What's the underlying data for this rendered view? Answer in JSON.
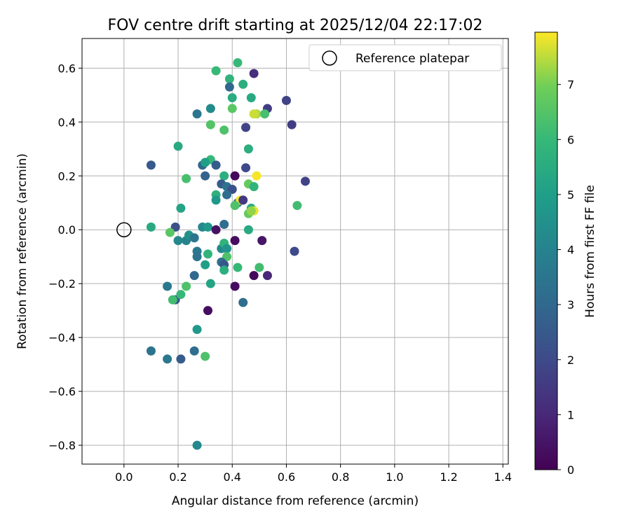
{
  "chart_data": {
    "type": "scatter",
    "title": "FOV centre drift starting at 2025/12/04 22:17:02",
    "xlabel": "Angular distance from reference (arcmin)",
    "ylabel": "Rotation from reference (arcmin)",
    "xlim": [
      -0.155,
      1.42
    ],
    "ylim": [
      -0.87,
      0.71
    ],
    "xticks": [
      0.0,
      0.2,
      0.4,
      0.6,
      0.8,
      1.0,
      1.2,
      1.4
    ],
    "xtick_labels": [
      "0.0",
      "0.2",
      "0.4",
      "0.6",
      "0.8",
      "1.0",
      "1.2",
      "1.4"
    ],
    "yticks": [
      -0.8,
      -0.6,
      -0.4,
      -0.2,
      0.0,
      0.2,
      0.4,
      0.6
    ],
    "ytick_labels": [
      "−0.8",
      "−0.6",
      "−0.4",
      "−0.2",
      "0.0",
      "0.2",
      "0.4",
      "0.6"
    ],
    "grid": true,
    "legend": {
      "label": "Reference platepar",
      "position": "top-right"
    },
    "reference_point": {
      "x": 0.0,
      "y": 0.0
    },
    "colorbar": {
      "label": "Hours from first FF file",
      "colormap": "viridis",
      "range": [
        0,
        7.95
      ],
      "ticks": [
        0,
        1,
        2,
        3,
        4,
        5,
        6,
        7
      ],
      "tick_labels": [
        "0",
        "1",
        "2",
        "3",
        "4",
        "5",
        "6",
        "7"
      ]
    },
    "points": [
      {
        "x": 0.34,
        "y": 0.59,
        "h": 6.0
      },
      {
        "x": 0.42,
        "y": 0.62,
        "h": 6.0
      },
      {
        "x": 0.48,
        "y": 0.58,
        "h": 1.2
      },
      {
        "x": 0.39,
        "y": 0.56,
        "h": 5.8
      },
      {
        "x": 0.44,
        "y": 0.54,
        "h": 5.6
      },
      {
        "x": 0.39,
        "y": 0.53,
        "h": 3.0
      },
      {
        "x": 0.4,
        "y": 0.49,
        "h": 5.5
      },
      {
        "x": 0.47,
        "y": 0.49,
        "h": 5.4
      },
      {
        "x": 0.6,
        "y": 0.48,
        "h": 1.8
      },
      {
        "x": 0.53,
        "y": 0.45,
        "h": 1.6
      },
      {
        "x": 0.27,
        "y": 0.43,
        "h": 3.5
      },
      {
        "x": 0.32,
        "y": 0.45,
        "h": 4.3
      },
      {
        "x": 0.4,
        "y": 0.45,
        "h": 6.6
      },
      {
        "x": 0.49,
        "y": 0.43,
        "h": 7.4
      },
      {
        "x": 0.48,
        "y": 0.43,
        "h": 7.6
      },
      {
        "x": 0.52,
        "y": 0.43,
        "h": 6.3
      },
      {
        "x": 0.62,
        "y": 0.39,
        "h": 1.6
      },
      {
        "x": 0.32,
        "y": 0.39,
        "h": 6.5
      },
      {
        "x": 0.37,
        "y": 0.37,
        "h": 6.4
      },
      {
        "x": 0.45,
        "y": 0.38,
        "h": 1.8
      },
      {
        "x": 0.2,
        "y": 0.31,
        "h": 5.4
      },
      {
        "x": 0.46,
        "y": 0.3,
        "h": 5.6
      },
      {
        "x": 0.32,
        "y": 0.26,
        "h": 6.0
      },
      {
        "x": 0.1,
        "y": 0.24,
        "h": 2.5
      },
      {
        "x": 0.29,
        "y": 0.24,
        "h": 3.0
      },
      {
        "x": 0.3,
        "y": 0.25,
        "h": 5.0
      },
      {
        "x": 0.34,
        "y": 0.24,
        "h": 2.6
      },
      {
        "x": 0.45,
        "y": 0.23,
        "h": 2.0
      },
      {
        "x": 0.3,
        "y": 0.2,
        "h": 2.8
      },
      {
        "x": 0.37,
        "y": 0.2,
        "h": 5.6
      },
      {
        "x": 0.41,
        "y": 0.2,
        "h": 0.2
      },
      {
        "x": 0.49,
        "y": 0.2,
        "h": 7.9
      },
      {
        "x": 0.67,
        "y": 0.18,
        "h": 1.8
      },
      {
        "x": 0.23,
        "y": 0.19,
        "h": 6.3
      },
      {
        "x": 0.36,
        "y": 0.17,
        "h": 2.6
      },
      {
        "x": 0.38,
        "y": 0.16,
        "h": 3.4
      },
      {
        "x": 0.4,
        "y": 0.15,
        "h": 2.2
      },
      {
        "x": 0.46,
        "y": 0.17,
        "h": 6.8
      },
      {
        "x": 0.48,
        "y": 0.16,
        "h": 5.8
      },
      {
        "x": 0.34,
        "y": 0.13,
        "h": 5.7
      },
      {
        "x": 0.34,
        "y": 0.11,
        "h": 4.8
      },
      {
        "x": 0.38,
        "y": 0.13,
        "h": 3.2
      },
      {
        "x": 0.42,
        "y": 0.1,
        "h": 3.6
      },
      {
        "x": 0.43,
        "y": 0.11,
        "h": 7.9
      },
      {
        "x": 0.44,
        "y": 0.11,
        "h": 1.5
      },
      {
        "x": 0.41,
        "y": 0.09,
        "h": 6.4
      },
      {
        "x": 0.21,
        "y": 0.08,
        "h": 5.2
      },
      {
        "x": 0.47,
        "y": 0.08,
        "h": 5.6
      },
      {
        "x": 0.46,
        "y": 0.06,
        "h": 6.8
      },
      {
        "x": 0.48,
        "y": 0.07,
        "h": 7.8
      },
      {
        "x": 0.47,
        "y": 0.07,
        "h": 7.2
      },
      {
        "x": 0.64,
        "y": 0.09,
        "h": 6.2
      },
      {
        "x": 0.1,
        "y": 0.01,
        "h": 5.4
      },
      {
        "x": 0.19,
        "y": 0.01,
        "h": 2.2
      },
      {
        "x": 0.17,
        "y": -0.01,
        "h": 6.6
      },
      {
        "x": 0.2,
        "y": -0.04,
        "h": 4.2
      },
      {
        "x": 0.23,
        "y": -0.04,
        "h": 4.0
      },
      {
        "x": 0.24,
        "y": -0.02,
        "h": 4.5
      },
      {
        "x": 0.26,
        "y": -0.03,
        "h": 3.5
      },
      {
        "x": 0.29,
        "y": 0.01,
        "h": 4.2
      },
      {
        "x": 0.31,
        "y": 0.01,
        "h": 4.8
      },
      {
        "x": 0.34,
        "y": 0.0,
        "h": 0.4
      },
      {
        "x": 0.37,
        "y": 0.02,
        "h": 3.2
      },
      {
        "x": 0.46,
        "y": 0.0,
        "h": 5.4
      },
      {
        "x": 0.41,
        "y": -0.04,
        "h": 0.3
      },
      {
        "x": 0.51,
        "y": -0.04,
        "h": 0.5
      },
      {
        "x": 0.63,
        "y": -0.08,
        "h": 2.0
      },
      {
        "x": 0.27,
        "y": -0.08,
        "h": 3.6
      },
      {
        "x": 0.27,
        "y": -0.1,
        "h": 3.4
      },
      {
        "x": 0.31,
        "y": -0.09,
        "h": 5.8
      },
      {
        "x": 0.36,
        "y": -0.07,
        "h": 4.2
      },
      {
        "x": 0.37,
        "y": -0.05,
        "h": 5.8
      },
      {
        "x": 0.38,
        "y": -0.07,
        "h": 4.6
      },
      {
        "x": 0.38,
        "y": -0.1,
        "h": 6.4
      },
      {
        "x": 0.3,
        "y": -0.13,
        "h": 5.0
      },
      {
        "x": 0.36,
        "y": -0.12,
        "h": 3.2
      },
      {
        "x": 0.37,
        "y": -0.13,
        "h": 2.4
      },
      {
        "x": 0.37,
        "y": -0.15,
        "h": 5.6
      },
      {
        "x": 0.42,
        "y": -0.14,
        "h": 6.0
      },
      {
        "x": 0.5,
        "y": -0.14,
        "h": 6.2
      },
      {
        "x": 0.48,
        "y": -0.17,
        "h": 0.2
      },
      {
        "x": 0.53,
        "y": -0.17,
        "h": 1.0
      },
      {
        "x": 0.26,
        "y": -0.17,
        "h": 3.0
      },
      {
        "x": 0.16,
        "y": -0.21,
        "h": 3.6
      },
      {
        "x": 0.23,
        "y": -0.21,
        "h": 6.4
      },
      {
        "x": 0.32,
        "y": -0.2,
        "h": 5.2
      },
      {
        "x": 0.41,
        "y": -0.21,
        "h": 0.3
      },
      {
        "x": 0.19,
        "y": -0.26,
        "h": 2.4
      },
      {
        "x": 0.18,
        "y": -0.26,
        "h": 6.2
      },
      {
        "x": 0.21,
        "y": -0.24,
        "h": 6.0
      },
      {
        "x": 0.44,
        "y": -0.27,
        "h": 3.2
      },
      {
        "x": 0.31,
        "y": -0.3,
        "h": 0.3
      },
      {
        "x": 0.27,
        "y": -0.37,
        "h": 4.8
      },
      {
        "x": 0.1,
        "y": -0.45,
        "h": 3.4
      },
      {
        "x": 0.26,
        "y": -0.45,
        "h": 3.2
      },
      {
        "x": 0.3,
        "y": -0.47,
        "h": 6.4
      },
      {
        "x": 0.16,
        "y": -0.48,
        "h": 3.6
      },
      {
        "x": 0.21,
        "y": -0.48,
        "h": 2.6
      },
      {
        "x": 0.27,
        "y": -0.8,
        "h": 4.2
      }
    ]
  }
}
